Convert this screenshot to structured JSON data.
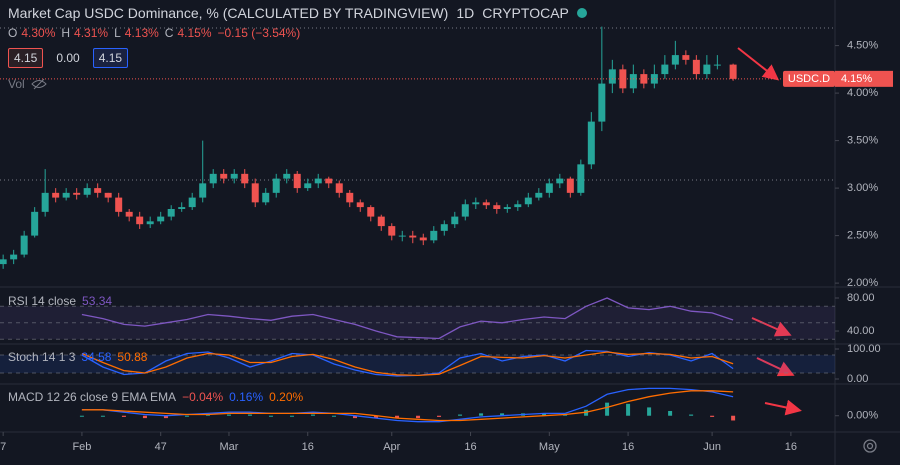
{
  "header": {
    "title": "Market Cap USDC Dominance, % (CALCULATED BY TRADINGVIEW)",
    "interval": "1D",
    "exchange": "CRYPTOCAP",
    "ohlc": [
      {
        "key": "O",
        "value": "4.30%"
      },
      {
        "key": "H",
        "value": "4.31%"
      },
      {
        "key": "L",
        "value": "4.13%"
      },
      {
        "key": "C",
        "value": "4.15%"
      }
    ],
    "change": "−0.15 (−3.54%)",
    "boxes": [
      "4.15",
      "0.00",
      "4.15"
    ],
    "volume": "Vol",
    "symbol_tag": "USDC.D",
    "price_tag": "4.15%"
  },
  "chart_data": [
    {
      "type": "candlestick",
      "up_color": "#26a69a",
      "down_color": "#ef5350",
      "x": [
        17,
        19,
        21,
        23,
        25,
        27,
        29,
        31,
        33,
        35,
        37,
        39,
        41,
        43,
        45,
        47,
        49,
        51,
        53,
        55,
        57,
        59,
        61,
        63,
        65,
        67,
        69,
        71,
        73,
        75,
        77,
        79,
        81,
        83,
        85,
        87,
        89,
        91,
        93,
        95,
        97,
        99,
        101,
        103,
        105,
        107,
        109,
        111,
        113,
        115,
        117,
        119,
        121,
        123,
        125,
        127,
        129,
        131,
        133,
        135,
        137,
        139,
        141,
        143,
        145,
        147,
        149,
        151,
        153,
        156
      ],
      "open": [
        2.2,
        2.25,
        2.3,
        2.5,
        2.75,
        2.95,
        2.9,
        2.95,
        2.93,
        3.0,
        2.95,
        2.9,
        2.75,
        2.7,
        2.62,
        2.65,
        2.7,
        2.78,
        2.8,
        2.9,
        3.05,
        3.15,
        3.1,
        3.15,
        3.05,
        2.85,
        2.95,
        3.1,
        3.15,
        3.0,
        3.05,
        3.1,
        3.05,
        2.95,
        2.85,
        2.8,
        2.7,
        2.6,
        2.5,
        2.5,
        2.48,
        2.45,
        2.55,
        2.62,
        2.7,
        2.83,
        2.85,
        2.82,
        2.78,
        2.8,
        2.83,
        2.9,
        2.95,
        3.05,
        3.1,
        2.95,
        3.25,
        3.7,
        4.1,
        4.25,
        4.05,
        4.2,
        4.1,
        4.2,
        4.3,
        4.4,
        4.35,
        4.2,
        4.3,
        4.3
      ],
      "high": [
        2.3,
        2.35,
        2.55,
        2.8,
        3.2,
        3.0,
        3.0,
        3.0,
        3.05,
        3.05,
        2.95,
        2.95,
        2.78,
        2.75,
        2.7,
        2.75,
        2.82,
        2.85,
        2.95,
        3.5,
        3.2,
        3.2,
        3.2,
        3.2,
        3.1,
        3.0,
        3.15,
        3.2,
        3.18,
        3.1,
        3.15,
        3.12,
        3.08,
        2.98,
        2.88,
        2.82,
        2.72,
        2.63,
        2.55,
        2.55,
        2.52,
        2.6,
        2.66,
        2.75,
        2.88,
        2.9,
        2.88,
        2.85,
        2.83,
        2.87,
        2.95,
        3.0,
        3.1,
        3.15,
        3.12,
        3.3,
        3.8,
        4.7,
        4.35,
        4.3,
        4.3,
        4.25,
        4.3,
        4.4,
        4.55,
        4.45,
        4.4,
        4.4,
        4.4,
        4.31
      ],
      "low": [
        2.15,
        2.2,
        2.27,
        2.48,
        2.7,
        2.85,
        2.87,
        2.88,
        2.9,
        2.9,
        2.85,
        2.7,
        2.65,
        2.57,
        2.58,
        2.62,
        2.66,
        2.75,
        2.77,
        2.85,
        3.0,
        3.05,
        3.05,
        3.0,
        2.8,
        2.82,
        2.9,
        3.05,
        2.95,
        2.97,
        3.0,
        3.0,
        2.9,
        2.8,
        2.75,
        2.65,
        2.55,
        2.45,
        2.44,
        2.42,
        2.4,
        2.42,
        2.5,
        2.58,
        2.66,
        2.78,
        2.78,
        2.73,
        2.74,
        2.76,
        2.8,
        2.87,
        2.9,
        3.0,
        2.9,
        2.92,
        3.2,
        3.6,
        4.0,
        4.0,
        4.0,
        4.05,
        4.05,
        4.15,
        4.25,
        4.3,
        4.15,
        4.15,
        4.25,
        4.13
      ],
      "close": [
        2.25,
        2.3,
        2.5,
        2.75,
        2.95,
        2.9,
        2.95,
        2.93,
        3.0,
        2.95,
        2.9,
        2.75,
        2.7,
        2.62,
        2.65,
        2.7,
        2.78,
        2.8,
        2.9,
        3.05,
        3.15,
        3.1,
        3.15,
        3.05,
        2.85,
        2.95,
        3.1,
        3.15,
        3.0,
        3.05,
        3.1,
        3.05,
        2.95,
        2.85,
        2.8,
        2.7,
        2.6,
        2.5,
        2.5,
        2.48,
        2.45,
        2.55,
        2.62,
        2.7,
        2.83,
        2.85,
        2.82,
        2.78,
        2.8,
        2.83,
        2.9,
        2.95,
        3.05,
        3.1,
        2.95,
        3.25,
        3.7,
        4.1,
        4.25,
        4.05,
        4.2,
        4.1,
        4.2,
        4.3,
        4.4,
        4.35,
        4.2,
        4.3,
        4.3,
        4.15
      ],
      "xlim": [
        16.4,
        175.4
      ],
      "xticks": [
        {
          "value": 17,
          "label": "7"
        },
        {
          "value": 32,
          "label": "Feb"
        },
        47,
        {
          "value": 60,
          "label": "Mar"
        },
        {
          "value": 75,
          "label": "16"
        },
        {
          "value": 91,
          "label": "Apr"
        },
        {
          "value": 106,
          "label": "16"
        },
        {
          "value": 121,
          "label": "May"
        },
        {
          "value": 136,
          "label": "16"
        },
        {
          "value": 152,
          "label": "Jun"
        },
        {
          "value": 167,
          "label": "16"
        }
      ],
      "ylim": [
        1.98,
        4.98
      ],
      "yticks": [
        {
          "value": 2.0,
          "label": "2.00%"
        },
        {
          "value": 2.5,
          "label": "2.50%"
        },
        {
          "value": 3.0,
          "label": "3.00%"
        },
        {
          "value": 3.5,
          "label": "3.50%"
        },
        {
          "value": 4.0,
          "label": "4.00%"
        },
        {
          "value": 4.5,
          "label": "4.50%"
        }
      ]
    },
    {
      "type": "line",
      "title": "RSI 14 close",
      "readouts": [
        {
          "text": "53.34",
          "color": "#7e57c2"
        }
      ],
      "x": [
        32,
        36,
        40,
        44,
        48,
        52,
        56,
        60,
        64,
        68,
        72,
        76,
        80,
        84,
        88,
        92,
        96,
        100,
        104,
        108,
        112,
        116,
        120,
        124,
        128,
        132,
        136,
        140,
        144,
        148,
        152,
        156
      ],
      "series": [
        {
          "name": "RSI",
          "color": "#7e57c2",
          "values": [
            60,
            55,
            48,
            46,
            50,
            54,
            60,
            58,
            55,
            53,
            58,
            60,
            54,
            48,
            40,
            33,
            32,
            31,
            45,
            52,
            50,
            54,
            57,
            55,
            70,
            80,
            68,
            66,
            70,
            64,
            62,
            53.34
          ]
        }
      ],
      "bands": [
        70,
        50,
        30
      ],
      "band_color": "rgba(126,87,194,0.12)",
      "xlim": [
        16.4,
        175.4
      ],
      "ylim": [
        26.7,
        89.7
      ],
      "yticks": [
        {
          "value": 40,
          "label": "40.00"
        },
        {
          "value": 80,
          "label": "80.00"
        }
      ]
    },
    {
      "type": "line",
      "title": "Stoch 14 1 3",
      "readouts": [
        {
          "text": "34.58",
          "color": "#2962ff"
        },
        {
          "text": "50.88",
          "color": "#ff6d00"
        }
      ],
      "x": [
        32,
        36,
        40,
        44,
        48,
        52,
        56,
        60,
        64,
        68,
        72,
        76,
        80,
        84,
        88,
        92,
        96,
        100,
        104,
        108,
        112,
        116,
        120,
        124,
        128,
        132,
        136,
        140,
        144,
        148,
        152,
        156
      ],
      "series": [
        {
          "name": "%K",
          "color": "#2962ff",
          "values": [
            80,
            40,
            15,
            20,
            60,
            85,
            90,
            70,
            40,
            60,
            85,
            80,
            50,
            30,
            15,
            10,
            12,
            20,
            70,
            85,
            60,
            75,
            80,
            60,
            95,
            92,
            75,
            88,
            80,
            60,
            85,
            34.58
          ]
        },
        {
          "name": "%D",
          "color": "#ff6d00",
          "values": [
            85,
            55,
            28,
            20,
            40,
            70,
            85,
            80,
            55,
            55,
            75,
            82,
            65,
            40,
            22,
            14,
            12,
            16,
            45,
            75,
            72,
            70,
            78,
            70,
            80,
            90,
            82,
            85,
            82,
            70,
            75,
            50.88
          ]
        }
      ],
      "bands": [
        80,
        20
      ],
      "band_color": "rgba(41,98,255,0.12)",
      "xlim": [
        16.4,
        175.4
      ],
      "ylim": [
        -13.3,
        110
      ],
      "yticks": [
        {
          "value": 0,
          "label": "0.00"
        },
        {
          "value": 100,
          "label": "100.00"
        }
      ]
    },
    {
      "type": "line",
      "title": "MACD 12 26 close 9 EMA EMA",
      "readouts": [
        {
          "text": "−0.04%",
          "color": "#ef5350"
        },
        {
          "text": "0.16%",
          "color": "#2962ff"
        },
        {
          "text": "0.20%",
          "color": "#ff6d00"
        }
      ],
      "x": [
        32,
        36,
        40,
        44,
        48,
        52,
        56,
        60,
        64,
        68,
        72,
        76,
        80,
        84,
        88,
        92,
        96,
        100,
        104,
        108,
        112,
        116,
        120,
        124,
        128,
        132,
        136,
        140,
        144,
        148,
        152,
        156
      ],
      "series": [
        {
          "name": "Histogram",
          "type": "bar",
          "color": "#26a69a",
          "negative_color": "#ef5350",
          "values": [
            0,
            0,
            -0.01,
            -0.02,
            -0.02,
            0,
            0.01,
            0.01,
            0.01,
            0,
            0,
            0.01,
            0,
            -0.02,
            -0.02,
            -0.02,
            -0.02,
            -0.01,
            0.01,
            0.02,
            0.02,
            0.02,
            0.02,
            0.01,
            0.05,
            0.11,
            0.1,
            0.07,
            0.04,
            0.01,
            -0.01,
            -0.04
          ]
        },
        {
          "name": "MACD",
          "color": "#2962ff",
          "values": [
            0.05,
            0.05,
            0.03,
            0.01,
            0.0,
            0.01,
            0.02,
            0.03,
            0.03,
            0.02,
            0.02,
            0.03,
            0.02,
            0.0,
            -0.02,
            -0.04,
            -0.05,
            -0.05,
            -0.03,
            -0.01,
            0.0,
            0.01,
            0.02,
            0.02,
            0.08,
            0.18,
            0.22,
            0.23,
            0.23,
            0.22,
            0.2,
            0.16
          ]
        },
        {
          "name": "Signal",
          "color": "#ff6d00",
          "values": [
            0.05,
            0.05,
            0.04,
            0.03,
            0.02,
            0.01,
            0.01,
            0.02,
            0.02,
            0.02,
            0.02,
            0.02,
            0.02,
            0.02,
            0.0,
            -0.02,
            -0.03,
            -0.04,
            -0.04,
            -0.03,
            -0.02,
            -0.01,
            0.0,
            0.01,
            0.03,
            0.07,
            0.12,
            0.16,
            0.19,
            0.21,
            0.21,
            0.2
          ]
        }
      ],
      "xlim": [
        16.4,
        175.4
      ],
      "ylim": [
        -0.12,
        0.25
      ],
      "yticks": [
        {
          "value": 0,
          "label": "0.00%"
        }
      ]
    }
  ]
}
